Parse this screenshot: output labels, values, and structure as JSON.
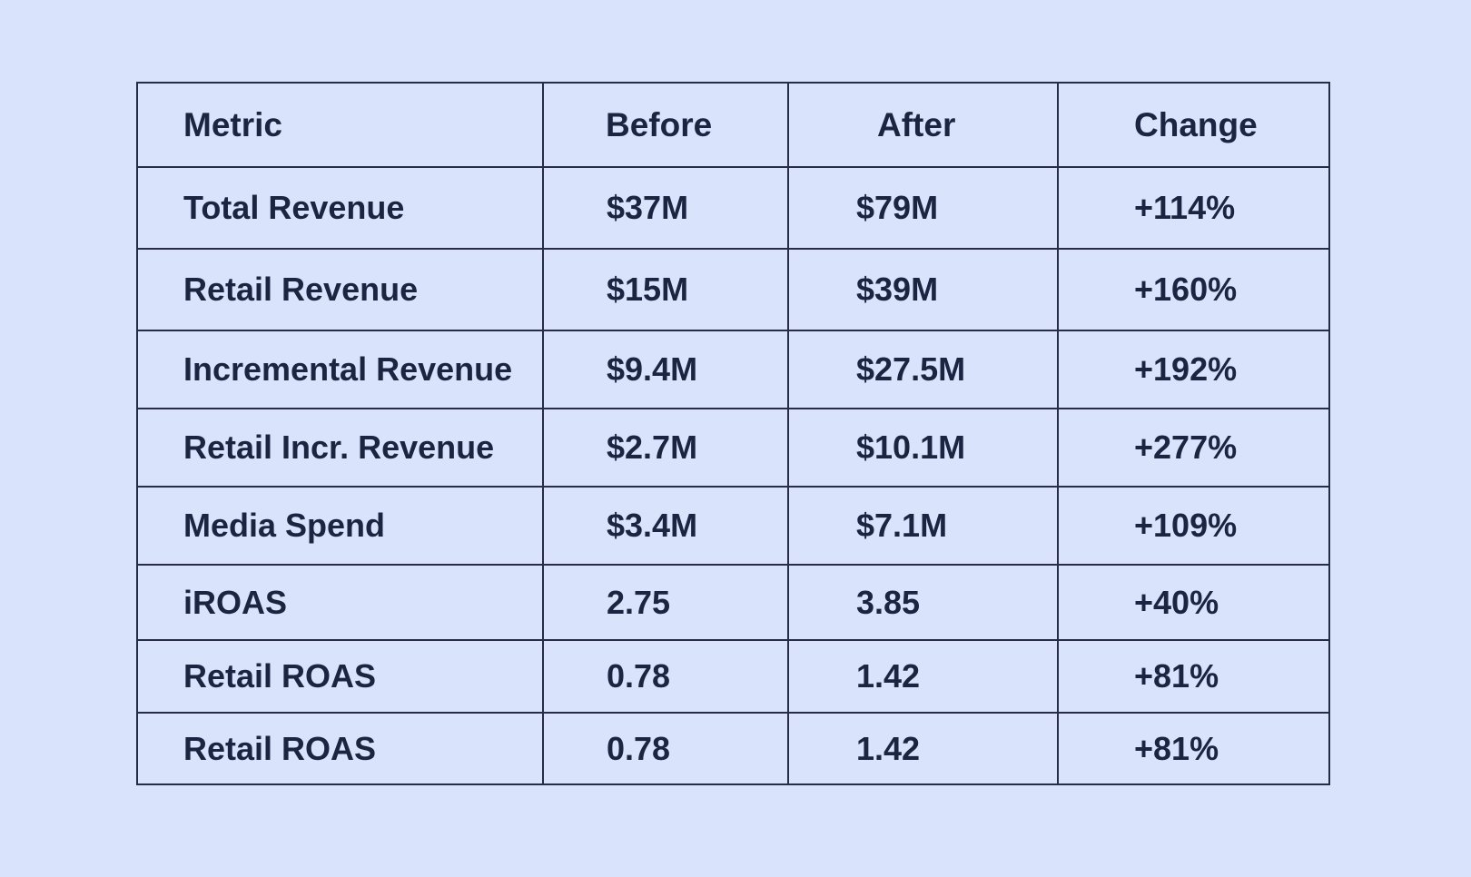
{
  "colors": {
    "background": "#d9e4fc",
    "text": "#1b2440",
    "border": "#262d45"
  },
  "chart_data": {
    "type": "table",
    "columns": [
      "Metric",
      "Before",
      "After",
      "Change"
    ],
    "rows": [
      [
        "Total Revenue",
        "$37M",
        "$79M",
        "+114%"
      ],
      [
        "Retail Revenue",
        "$15M",
        "$39M",
        "+160%"
      ],
      [
        "Incremental Revenue",
        "$9.4M",
        "$27.5M",
        "+192%"
      ],
      [
        "Retail Incr. Revenue",
        "$2.7M",
        "$10.1M",
        "+277%"
      ],
      [
        "Media Spend",
        "$3.4M",
        "$7.1M",
        "+109%"
      ],
      [
        "iROAS",
        "2.75",
        "3.85",
        "+40%"
      ],
      [
        "Retail ROAS",
        "0.78",
        "1.42",
        "+81%"
      ],
      [
        "Retail ROAS",
        "0.78",
        "1.42",
        "+81%"
      ]
    ]
  }
}
